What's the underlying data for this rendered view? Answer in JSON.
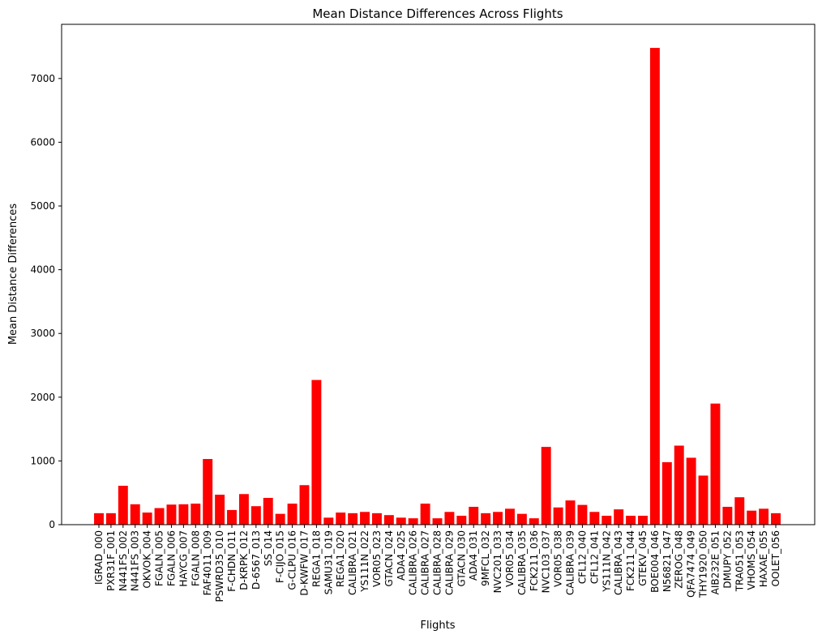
{
  "chart_data": {
    "type": "bar",
    "title": "Mean Distance Differences Across Flights",
    "xlabel": "Flights",
    "ylabel": "Mean Distance Differences",
    "ylim": [
      0,
      7850
    ],
    "yticks": [
      0,
      1000,
      2000,
      3000,
      4000,
      5000,
      6000,
      7000
    ],
    "grid": false,
    "bar_color": "#ff0000",
    "categories": [
      "IGRAD_000",
      "PXR31F_001",
      "N441FS_002",
      "N441FS_003",
      "OKVOK_004",
      "FGALN_005",
      "FGALN_006",
      "HAYCG_007",
      "FGALN_008",
      "FAF4011_009",
      "PSWRD35_010",
      "F-CHDN_011",
      "D-KRPK_012",
      "D-6567_013",
      "SS_014",
      "F-CIJO_015",
      "G-CLPU_016",
      "D-KWFW_017",
      "REGA1_018",
      "SAMU31_019",
      "REGA1_020",
      "CALIBRA_021",
      "YS111N_022",
      "VOR05_023",
      "GTACN_024",
      "ADA4_025",
      "CALIBRA_026",
      "CALIBRA_027",
      "CALIBRA_028",
      "CALIBRA_029",
      "GTACN_030",
      "ADA4_031",
      "9MFCL_032",
      "NVC201_033",
      "VOR05_034",
      "CALIBRA_035",
      "FCK211_036",
      "NVC103_037",
      "VOR05_038",
      "CALIBRA_039",
      "CFL12_040",
      "CFL12_041",
      "YS111N_042",
      "CALIBRA_043",
      "FCK211_044",
      "GTEKV_045",
      "BOE004_046",
      "N56821_047",
      "ZEROG_048",
      "QFA7474_049",
      "THY1920_050",
      "AIB232E_051",
      "DMUPY_052",
      "TRA051_053",
      "VHOMS_054",
      "HAXAE_055",
      "OOLET_056"
    ],
    "values": [
      180,
      180,
      610,
      320,
      190,
      260,
      315,
      320,
      330,
      1030,
      470,
      230,
      480,
      290,
      420,
      170,
      330,
      620,
      2270,
      110,
      190,
      180,
      200,
      180,
      150,
      110,
      100,
      330,
      100,
      200,
      140,
      280,
      180,
      200,
      250,
      170,
      100,
      1220,
      270,
      380,
      310,
      200,
      140,
      240,
      140,
      140,
      7480,
      980,
      1240,
      1050,
      770,
      1900,
      280,
      430,
      220,
      250,
      180
    ]
  }
}
